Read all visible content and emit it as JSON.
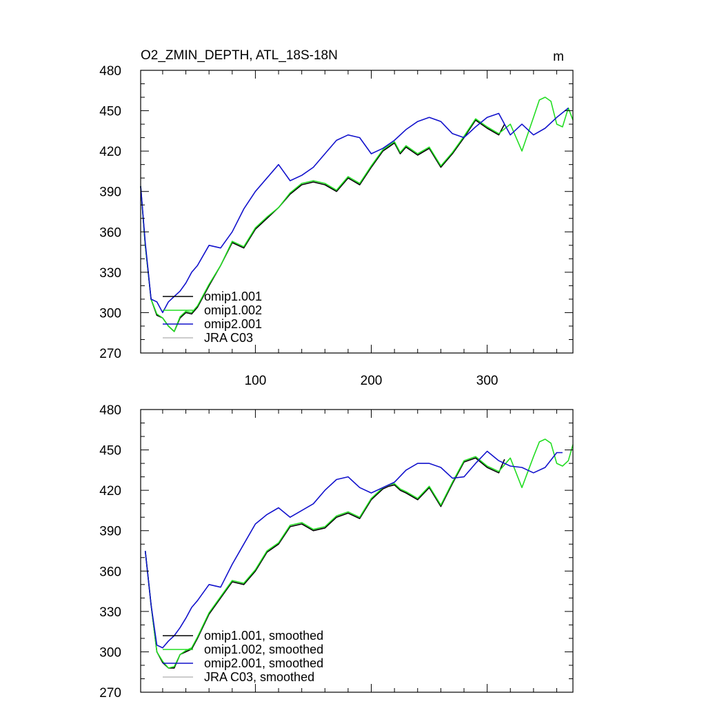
{
  "figure": {
    "title": "O2_ZMIN_DEPTH, ATL_18S-18N",
    "units": "m"
  },
  "colors": {
    "omip1_001": "#000000",
    "omip1_002": "#22dd22",
    "omip2_001": "#1111cc",
    "jra_c03": "#bbbbbb",
    "axis": "#000000"
  },
  "chart_data": [
    {
      "type": "line",
      "title": "O2_ZMIN_DEPTH, ATL_18S-18N",
      "units_label": "m",
      "xlim": [
        1,
        374
      ],
      "ylim": [
        270,
        480
      ],
      "x_ticks": [
        100,
        200,
        300
      ],
      "x_tick_labels": [
        "100",
        "200",
        "300"
      ],
      "y_ticks": [
        270,
        300,
        330,
        360,
        390,
        420,
        450,
        480
      ],
      "y_tick_labels": [
        "270",
        "300",
        "330",
        "360",
        "390",
        "420",
        "450",
        "480"
      ],
      "legend_position": "bottom-left",
      "series": [
        {
          "name": "omip1.001",
          "x": [
            1,
            5,
            10,
            15,
            20,
            25,
            30,
            35,
            40,
            45,
            50,
            60,
            70,
            80,
            90,
            100,
            110,
            120,
            130,
            140,
            150,
            160,
            170,
            180,
            190,
            200,
            210,
            215,
            220,
            225,
            230,
            240,
            250,
            260,
            270,
            280,
            290,
            300,
            310,
            315
          ],
          "y": [
            394,
            350,
            310,
            298,
            296,
            290,
            286,
            296,
            300,
            299,
            304,
            320,
            335,
            352,
            348,
            362,
            370,
            378,
            388,
            395,
            397,
            395,
            390,
            400,
            395,
            408,
            420,
            423,
            426,
            418,
            423,
            417,
            422,
            408,
            418,
            430,
            443,
            437,
            432,
            440
          ]
        },
        {
          "name": "omip1.002",
          "x": [
            1,
            5,
            10,
            15,
            20,
            25,
            30,
            35,
            40,
            45,
            50,
            60,
            70,
            80,
            90,
            100,
            110,
            120,
            130,
            140,
            150,
            160,
            170,
            180,
            190,
            200,
            210,
            215,
            220,
            225,
            230,
            240,
            250,
            260,
            270,
            280,
            290,
            300,
            310,
            320,
            330,
            340,
            345,
            350,
            355,
            360,
            365,
            370,
            374
          ],
          "y": [
            394,
            350,
            310,
            299,
            296,
            290,
            286,
            297,
            301,
            300,
            305,
            321,
            335,
            353,
            349,
            363,
            371,
            378,
            389,
            396,
            398,
            396,
            391,
            401,
            396,
            409,
            421,
            424,
            427,
            419,
            424,
            418,
            423,
            409,
            419,
            431,
            444,
            438,
            433,
            440,
            420,
            445,
            458,
            460,
            457,
            440,
            438,
            452,
            443
          ]
        },
        {
          "name": "omip2.001",
          "x": [
            1,
            5,
            10,
            15,
            20,
            25,
            30,
            35,
            40,
            45,
            50,
            60,
            70,
            80,
            90,
            100,
            110,
            120,
            130,
            140,
            150,
            160,
            170,
            180,
            190,
            200,
            210,
            220,
            230,
            240,
            250,
            260,
            270,
            280,
            290,
            300,
            310,
            320,
            330,
            340,
            350,
            360,
            370
          ],
          "y": [
            394,
            352,
            310,
            308,
            300,
            308,
            312,
            316,
            322,
            330,
            335,
            350,
            348,
            360,
            377,
            390,
            400,
            410,
            398,
            402,
            408,
            418,
            428,
            432,
            430,
            418,
            422,
            428,
            436,
            442,
            445,
            442,
            433,
            430,
            438,
            445,
            448,
            432,
            440,
            432,
            437,
            445,
            452
          ]
        },
        {
          "name": "JRA C03",
          "x": [],
          "y": []
        }
      ]
    },
    {
      "type": "line",
      "xlim": [
        1,
        374
      ],
      "ylim": [
        270,
        480
      ],
      "x_ticks": [
        100,
        200,
        300
      ],
      "x_tick_labels": [],
      "y_ticks": [
        270,
        300,
        330,
        360,
        390,
        420,
        450,
        480
      ],
      "y_tick_labels": [
        "270",
        "300",
        "330",
        "360",
        "390",
        "420",
        "450",
        "480"
      ],
      "legend_position": "bottom-left",
      "series": [
        {
          "name": "omip1.001, smoothed",
          "x": [
            5,
            10,
            15,
            20,
            25,
            30,
            35,
            40,
            45,
            50,
            60,
            70,
            80,
            90,
            100,
            110,
            120,
            130,
            140,
            150,
            160,
            170,
            180,
            190,
            200,
            210,
            215,
            220,
            225,
            230,
            240,
            250,
            260,
            270,
            280,
            290,
            300,
            310,
            315
          ],
          "y": [
            375,
            335,
            300,
            292,
            288,
            288,
            298,
            300,
            302,
            310,
            328,
            340,
            352,
            350,
            360,
            374,
            380,
            393,
            395,
            390,
            392,
            400,
            403,
            399,
            413,
            421,
            423,
            424,
            420,
            418,
            413,
            422,
            408,
            425,
            441,
            444,
            437,
            433,
            443
          ]
        },
        {
          "name": "omip1.002, smoothed",
          "x": [
            5,
            10,
            15,
            20,
            25,
            30,
            35,
            40,
            45,
            50,
            60,
            70,
            80,
            90,
            100,
            110,
            120,
            130,
            140,
            150,
            160,
            170,
            180,
            190,
            200,
            210,
            215,
            220,
            225,
            230,
            240,
            250,
            260,
            270,
            280,
            290,
            300,
            310,
            320,
            330,
            340,
            345,
            350,
            355,
            360,
            365,
            370,
            374
          ],
          "y": [
            375,
            335,
            300,
            293,
            288,
            289,
            298,
            301,
            303,
            311,
            329,
            341,
            353,
            351,
            361,
            375,
            381,
            394,
            396,
            391,
            393,
            401,
            404,
            400,
            414,
            422,
            424,
            425,
            421,
            419,
            414,
            423,
            409,
            426,
            442,
            445,
            438,
            434,
            444,
            422,
            445,
            456,
            458,
            455,
            440,
            438,
            442,
            454
          ]
        },
        {
          "name": "omip2.001, smoothed",
          "x": [
            5,
            10,
            15,
            20,
            25,
            30,
            35,
            40,
            45,
            50,
            60,
            70,
            80,
            90,
            100,
            110,
            120,
            130,
            140,
            150,
            160,
            170,
            180,
            190,
            200,
            210,
            220,
            230,
            240,
            250,
            260,
            270,
            280,
            290,
            300,
            310,
            320,
            330,
            340,
            350,
            360,
            365
          ],
          "y": [
            375,
            335,
            305,
            303,
            308,
            312,
            318,
            325,
            333,
            338,
            350,
            348,
            365,
            380,
            395,
            402,
            407,
            400,
            405,
            410,
            420,
            428,
            430,
            422,
            418,
            422,
            426,
            435,
            440,
            440,
            437,
            429,
            430,
            440,
            449,
            442,
            438,
            437,
            433,
            437,
            448,
            448
          ]
        },
        {
          "name": "JRA C03, smoothed",
          "x": [],
          "y": []
        }
      ]
    }
  ]
}
